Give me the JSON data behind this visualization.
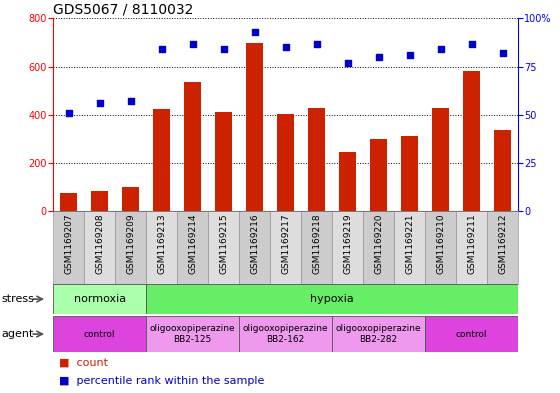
{
  "title": "GDS5067 / 8110032",
  "samples": [
    "GSM1169207",
    "GSM1169208",
    "GSM1169209",
    "GSM1169213",
    "GSM1169214",
    "GSM1169215",
    "GSM1169216",
    "GSM1169217",
    "GSM1169218",
    "GSM1169219",
    "GSM1169220",
    "GSM1169221",
    "GSM1169210",
    "GSM1169211",
    "GSM1169212"
  ],
  "counts": [
    75,
    85,
    100,
    425,
    535,
    410,
    700,
    405,
    430,
    245,
    300,
    310,
    430,
    580,
    335
  ],
  "percentiles": [
    51,
    56,
    57,
    84,
    87,
    84,
    93,
    85,
    87,
    77,
    80,
    81,
    84,
    87,
    82
  ],
  "bar_color": "#cc2200",
  "dot_color": "#0000cc",
  "ylim_left": [
    0,
    800
  ],
  "ylim_right": [
    0,
    100
  ],
  "yticks_left": [
    0,
    200,
    400,
    600,
    800
  ],
  "yticks_right": [
    0,
    25,
    50,
    75,
    100
  ],
  "ytick_labels_right": [
    "0",
    "25",
    "50",
    "75",
    "100%"
  ],
  "stress_groups": [
    {
      "label": "normoxia",
      "start": 0,
      "end": 3,
      "color": "#aaffaa"
    },
    {
      "label": "hypoxia",
      "start": 3,
      "end": 15,
      "color": "#66ee66"
    }
  ],
  "agent_groups": [
    {
      "label": "control",
      "start": 0,
      "end": 3,
      "color": "#dd44dd"
    },
    {
      "label": "oligooxopiperazine\nBB2-125",
      "start": 3,
      "end": 6,
      "color": "#ee99ee"
    },
    {
      "label": "oligooxopiperazine\nBB2-162",
      "start": 6,
      "end": 9,
      "color": "#ee99ee"
    },
    {
      "label": "oligooxopiperazine\nBB2-282",
      "start": 9,
      "end": 12,
      "color": "#ee99ee"
    },
    {
      "label": "control",
      "start": 12,
      "end": 15,
      "color": "#dd44dd"
    }
  ],
  "bg_color": "#ffffff",
  "plot_bg_color": "#ffffff",
  "sample_col_color_even": "#cccccc",
  "sample_col_color_odd": "#dddddd",
  "grid_color": "#000000",
  "title_fontsize": 10,
  "tick_fontsize": 7,
  "bar_label_fontsize": 6.5,
  "row_label_fontsize": 8,
  "group_label_fontsize": 8,
  "legend_fontsize": 8,
  "bar_width": 0.55
}
